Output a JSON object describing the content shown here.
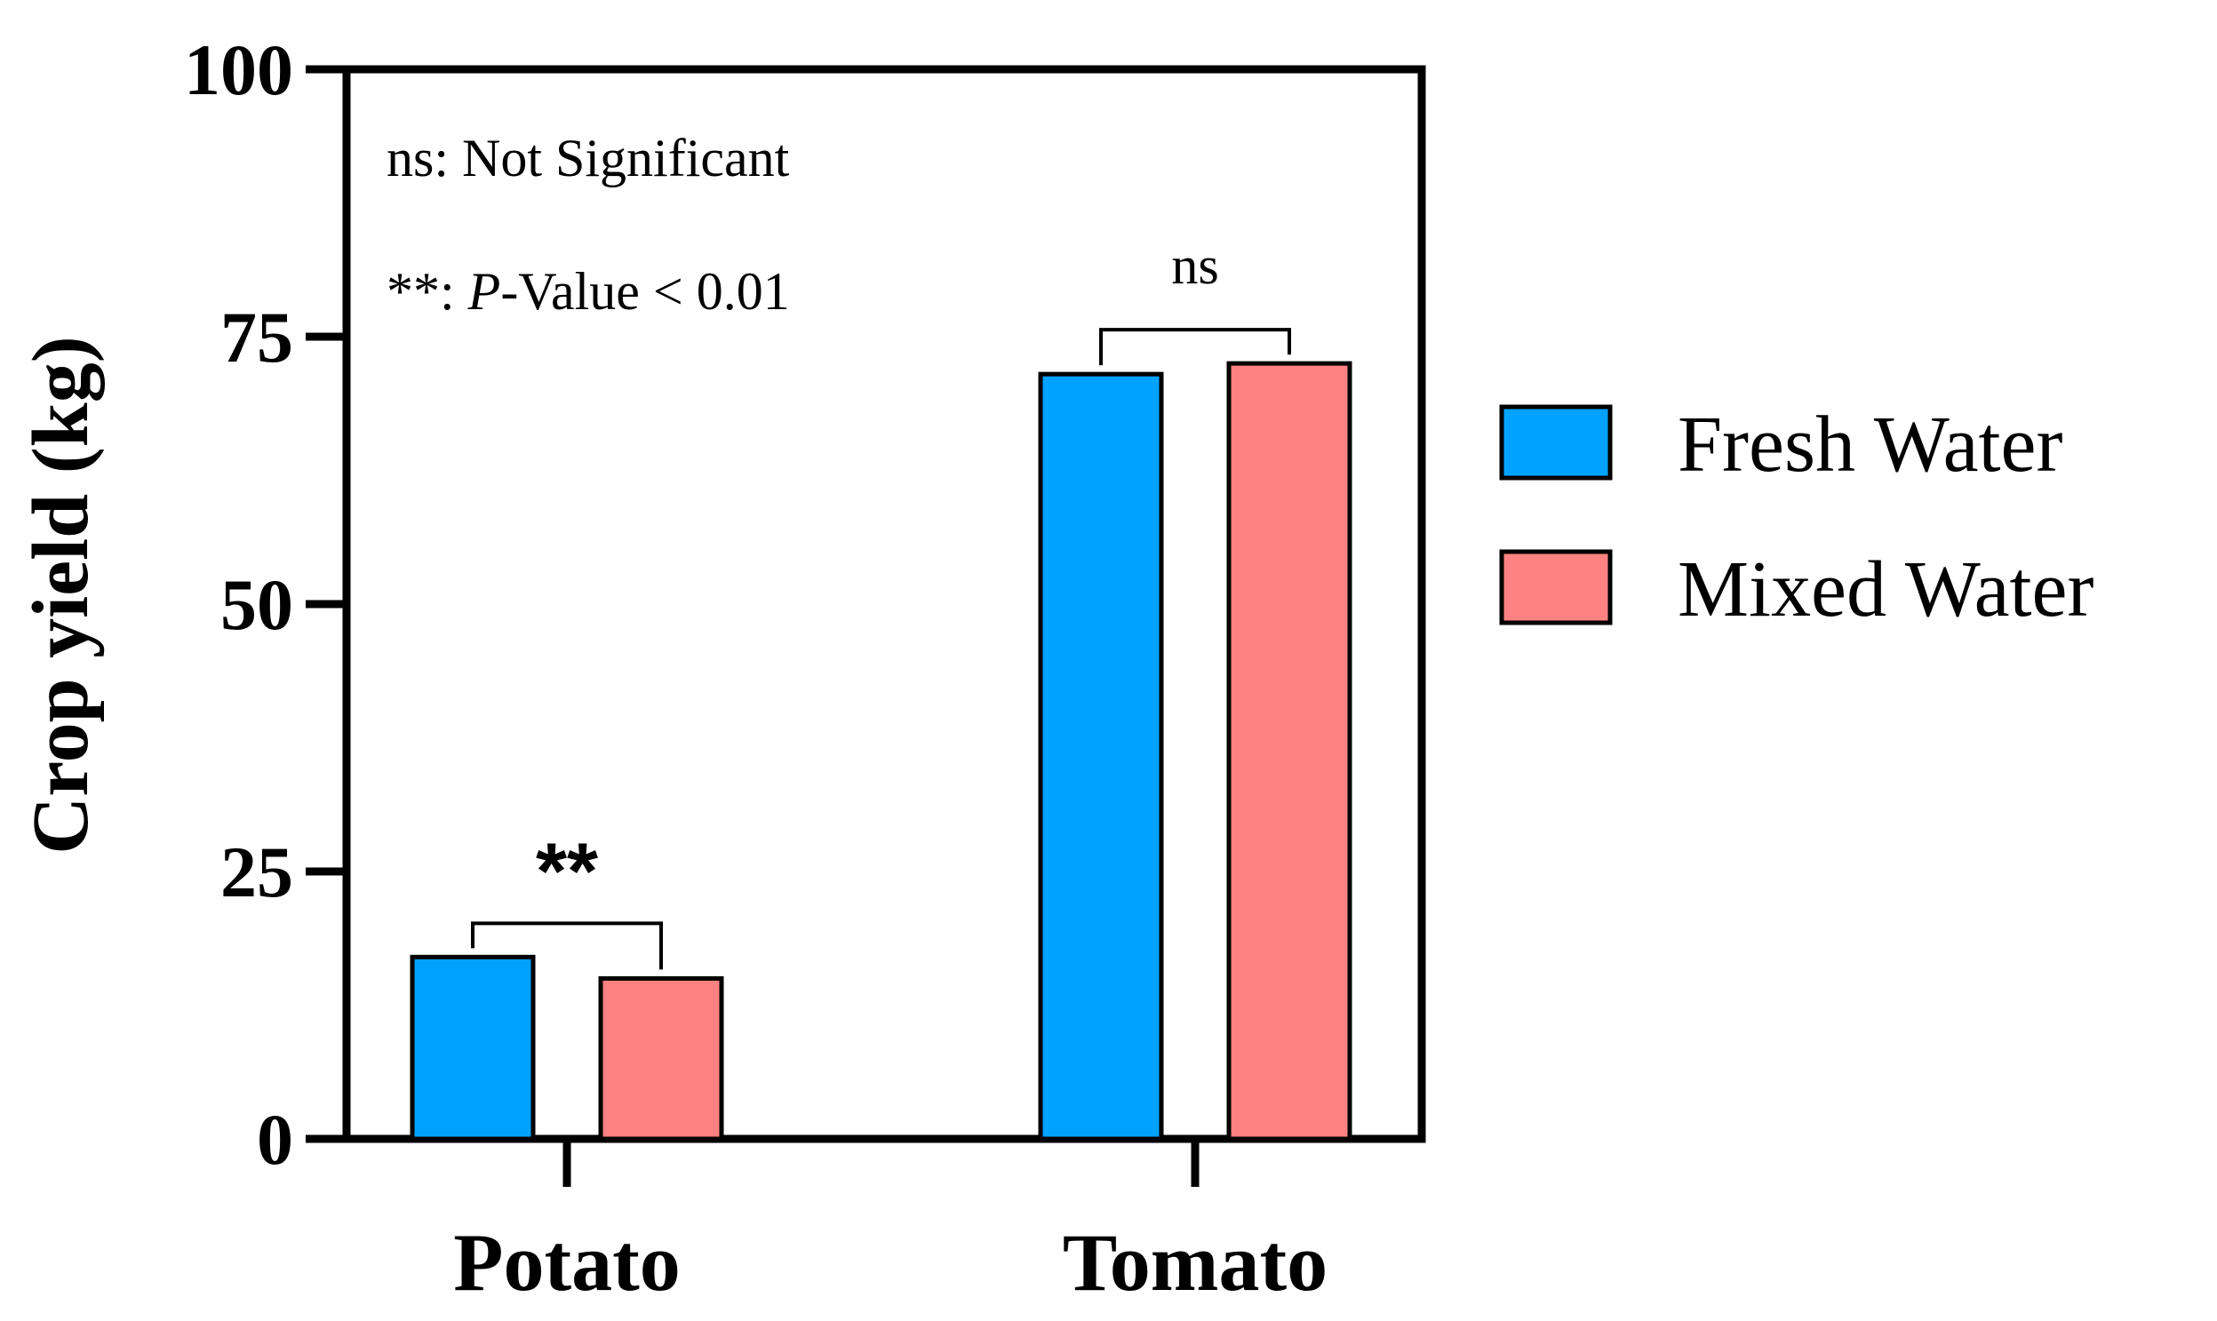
{
  "chart_data": {
    "type": "bar",
    "categories": [
      "Potato",
      "Tomato"
    ],
    "series": [
      {
        "name": "Fresh Water",
        "color": "#00a2ff",
        "values": [
          17,
          71.5
        ]
      },
      {
        "name": "Mixed Water",
        "color": "#ff8282",
        "values": [
          15,
          72.5
        ]
      }
    ],
    "ylabel": "Crop yield (kg)",
    "xlabel": "",
    "ylim": [
      0,
      100
    ],
    "yticks": [
      0,
      25,
      50,
      75,
      100
    ],
    "grid": false,
    "legend_position": "right",
    "annotations": {
      "line1": "ns: Not Significant",
      "line2_prefix": "**: ",
      "line2_italic": "P",
      "line2_suffix": "-Value < 0.01"
    },
    "significance": [
      {
        "category": "Potato",
        "label": "**"
      },
      {
        "category": "Tomato",
        "label": "ns"
      }
    ]
  }
}
